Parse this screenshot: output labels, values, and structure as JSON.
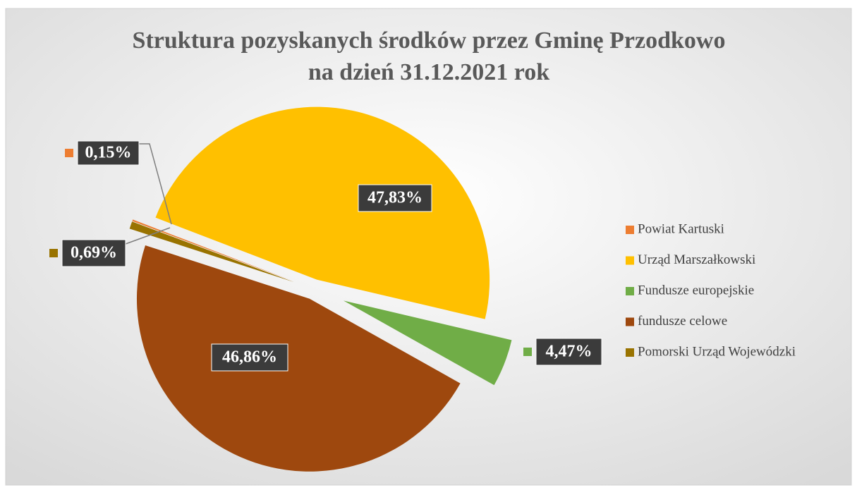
{
  "chart_data": {
    "type": "pie",
    "title": "Struktura pozyskanych środków przez Gminę Przodkowo",
    "subtitle": "na dzień 31.12.2021 rok",
    "categories": [
      "Powiat Kartuski",
      "Urząd Marszałkowski",
      "Fundusze europejskie",
      "fundusze celowe",
      "Pomorski Urząd Wojewódzki"
    ],
    "values": [
      0.15,
      47.83,
      4.47,
      46.86,
      0.69
    ],
    "value_labels": [
      "0,15%",
      "47,83%",
      "4,47%",
      "46,86%",
      "0,69%"
    ],
    "colors": [
      "#ED7D31",
      "#FFC000",
      "#70AD47",
      "#9E480E",
      "#997300"
    ],
    "legend": "right"
  }
}
